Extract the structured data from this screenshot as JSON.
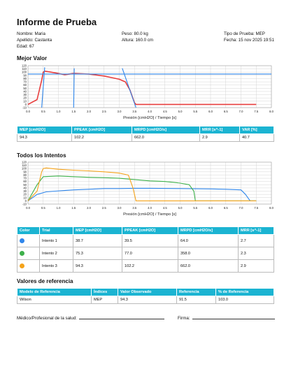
{
  "report": {
    "title": "Informe de Prueba",
    "nombre": "Nombre: Maria",
    "apellido": "Apellido: Castanta",
    "edad": "Edad: 67",
    "peso": "Peso: 80.0 kg",
    "altura": "Altura: 160.0 cm",
    "tipo": "Tipo de Prueba: MEP",
    "fecha": "Fecha: 15 nov 2025 19:51"
  },
  "best": {
    "heading": "Mejor Valor",
    "xlabel": "Presión [cmH2O] / Tiempo [s]",
    "headers": [
      "MEP [cmH2O]",
      "PPEAK [cmH2O]",
      "MRPD [cmH2O/s]",
      "MRR [s^-1]",
      "VAR [%]"
    ],
    "row": [
      "94.3",
      "102.2",
      "662.0",
      "2.9",
      "40.7"
    ]
  },
  "all": {
    "heading": "Todos los Intentos",
    "xlabel": "Presión [cmH2O] / Tiempo [s]",
    "headers": [
      "Color",
      "Trial",
      "MEP [cmH2O]",
      "PPEAK [cmH2O]",
      "MRPD [cmH2O/s]",
      "MRR [s^-1]"
    ],
    "rows": [
      {
        "color": "#2f86eb",
        "cells": [
          "Intento 1",
          "38.7",
          "39.5",
          "64.0",
          "2.7"
        ]
      },
      {
        "color": "#3db04b",
        "cells": [
          "Intento 2",
          "75.3",
          "77.0",
          "358.0",
          "2.3"
        ]
      },
      {
        "color": "#f5a31a",
        "cells": [
          "Intento 3",
          "94.3",
          "102.2",
          "662.0",
          "2.9"
        ]
      }
    ]
  },
  "reference": {
    "heading": "Valores de referencia",
    "headers": [
      "Modelo de Referencia",
      "Índices",
      "Valor Observado",
      "Referencia",
      "% de Referencia"
    ],
    "row": [
      "Wilson",
      "MEP",
      "94.3",
      "91.5",
      "103.0"
    ]
  },
  "signatures": {
    "medico": "Médico/Profesional de la salud:",
    "firma": "Firma:"
  },
  "chart_data": [
    {
      "type": "line",
      "title": "Mejor Valor",
      "xlabel": "Presión [cmH2O] / Tiempo [s]",
      "xlim": [
        0,
        8
      ],
      "ylim": [
        -10,
        120
      ],
      "xticks": [
        "0.0",
        "0.5",
        "1.0",
        "1.5",
        "2.0",
        "2.5",
        "3.0",
        "3.5",
        "4.0",
        "4.5",
        "5.0",
        "5.5",
        "6.0",
        "6.5",
        "7.0",
        "7.5",
        "8.0"
      ],
      "yticks": [
        "-10",
        "0",
        "10",
        "20",
        "30",
        "40",
        "50",
        "60",
        "70",
        "80",
        "90",
        "100",
        "110",
        "120"
      ],
      "series": [
        {
          "color": "#e83e3e",
          "x": [
            0,
            0.3,
            0.45,
            0.5,
            0.55,
            0.7,
            1.0,
            1.2,
            1.5,
            2.0,
            2.5,
            2.8,
            3.0,
            3.2,
            3.35,
            3.5,
            3.55,
            4.0,
            5.0,
            6.0,
            7.0,
            7.5
          ],
          "y": [
            0,
            15,
            75,
            100,
            103,
            101,
            96,
            92,
            96,
            94,
            88,
            82,
            78,
            70,
            45,
            5,
            0,
            0,
            0,
            0,
            0,
            0
          ]
        },
        {
          "color": "#2f86eb",
          "x": [
            0.45,
            0.55
          ],
          "y": [
            -10,
            115
          ]
        },
        {
          "color": "#2f86eb",
          "x": [
            1.5,
            1.52
          ],
          "y": [
            -10,
            112
          ]
        },
        {
          "color": "#2f86eb",
          "x": [
            3.1,
            3.55
          ],
          "y": [
            112,
            -10
          ]
        },
        {
          "color": "#2f86eb",
          "x": [
            0,
            8
          ],
          "y": [
            94.3,
            94.3
          ]
        }
      ]
    },
    {
      "type": "line",
      "title": "Todos los Intentos",
      "xlabel": "Presión [cmH2O] / Tiempo [s]",
      "xlim": [
        0,
        8
      ],
      "ylim": [
        -10,
        120
      ],
      "xticks": [
        "0.0",
        "0.5",
        "1.0",
        "1.5",
        "2.0",
        "2.5",
        "3.0",
        "3.5",
        "4.0",
        "4.5",
        "5.0",
        "5.5",
        "6.0",
        "6.5",
        "7.0",
        "7.5",
        "8.0"
      ],
      "yticks": [
        "-10",
        "0",
        "10",
        "20",
        "30",
        "40",
        "50",
        "60",
        "70",
        "80",
        "90",
        "100",
        "110",
        "120"
      ],
      "series": [
        {
          "color": "#2f86eb",
          "x": [
            0,
            0.3,
            0.6,
            0.9,
            1.2,
            1.5,
            2.0,
            2.5,
            3.0,
            3.5,
            4.0,
            5.0,
            6.0,
            6.5,
            7.0,
            7.15,
            7.3,
            7.5
          ],
          "y": [
            0,
            20,
            28,
            30,
            32,
            34,
            36,
            38,
            38,
            39,
            39,
            38,
            37,
            36,
            34,
            20,
            0,
            0
          ]
        },
        {
          "color": "#3db04b",
          "x": [
            0,
            0.3,
            0.5,
            1.0,
            1.5,
            2.0,
            2.5,
            3.0,
            3.5,
            4.0,
            4.5,
            5.0,
            5.3,
            5.45,
            5.5,
            6.0,
            7.0,
            7.5
          ],
          "y": [
            0,
            50,
            75,
            77,
            75,
            73,
            72,
            70,
            66,
            62,
            60,
            55,
            50,
            30,
            0,
            0,
            0,
            0
          ]
        },
        {
          "color": "#f5a31a",
          "x": [
            0,
            0.3,
            0.45,
            0.5,
            0.6,
            1.0,
            1.5,
            2.0,
            2.5,
            3.0,
            3.3,
            3.45,
            3.55,
            4.0,
            5.0,
            6.0,
            7.0,
            7.5
          ],
          "y": [
            0,
            30,
            90,
            100,
            102,
            98,
            95,
            93,
            90,
            86,
            80,
            40,
            0,
            0,
            0,
            0,
            0,
            0
          ]
        }
      ]
    }
  ]
}
